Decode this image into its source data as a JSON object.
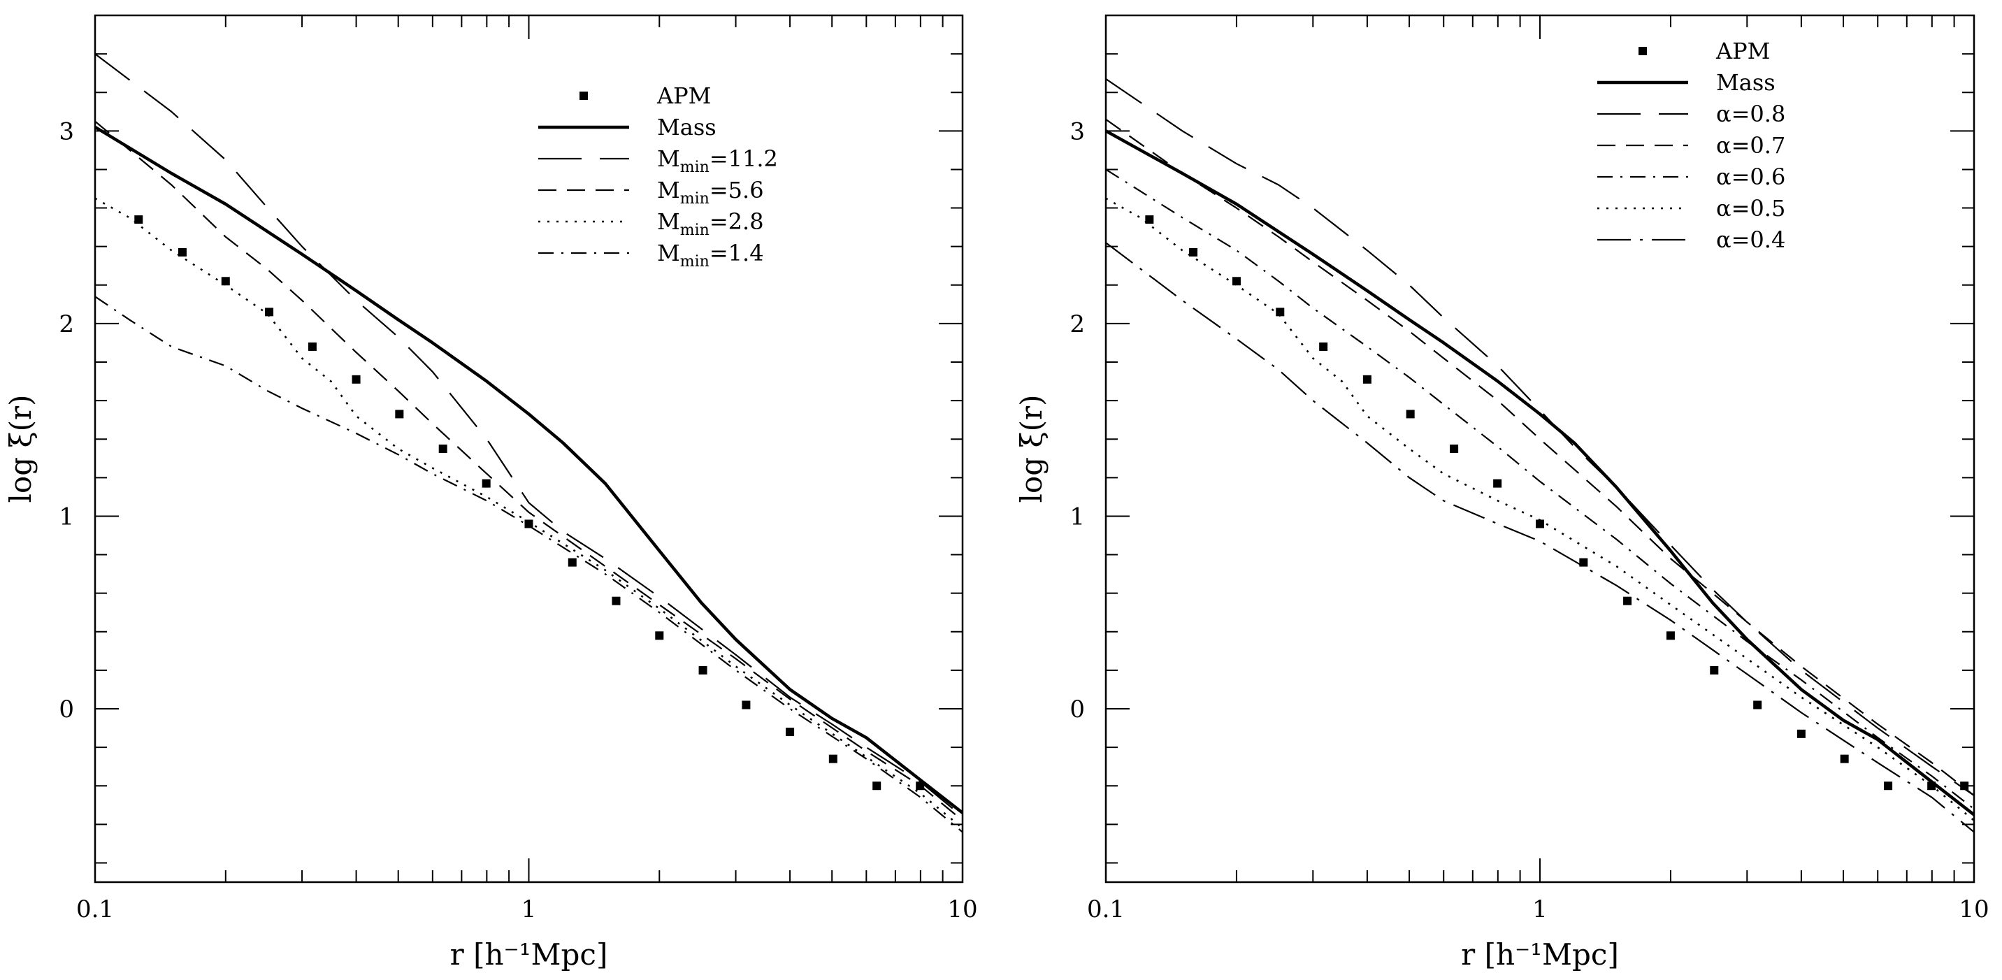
{
  "chart_data": [
    {
      "type": "line",
      "xscale": "log",
      "xlim": [
        0.1,
        10
      ],
      "ylim": [
        -0.9,
        3.6
      ],
      "xlabel": "r [h⁻¹Mpc]",
      "ylabel": "log ξ(r)",
      "x_ticks": [
        0.1,
        1,
        10
      ],
      "x_tick_labels": [
        "0.1",
        "1",
        "10"
      ],
      "y_ticks": [
        0,
        1,
        2,
        3
      ],
      "y_tick_labels": [
        "0",
        "1",
        "2",
        "3"
      ],
      "legend_position": "top-right",
      "series": [
        {
          "name": "APM",
          "style": "points",
          "x": [
            0.126,
            0.159,
            0.2,
            0.252,
            0.317,
            0.4,
            0.503,
            0.634,
            0.798,
            1.0,
            1.26,
            1.59,
            2.0,
            2.52,
            3.17,
            4.0,
            5.03,
            6.34,
            7.98
          ],
          "y": [
            2.54,
            2.37,
            2.22,
            2.06,
            1.88,
            1.71,
            1.53,
            1.35,
            1.17,
            0.96,
            0.76,
            0.56,
            0.38,
            0.2,
            0.02,
            -0.12,
            -0.26,
            -0.4,
            -0.4
          ]
        },
        {
          "name": "Mass",
          "style": "solid-thick",
          "x": [
            0.1,
            0.15,
            0.2,
            0.3,
            0.4,
            0.5,
            0.6,
            0.8,
            1.0,
            1.2,
            1.5,
            2.0,
            2.5,
            3.0,
            4.0,
            5.0,
            6.0,
            8.0,
            10.0
          ],
          "y": [
            3.02,
            2.78,
            2.62,
            2.36,
            2.17,
            2.02,
            1.9,
            1.7,
            1.53,
            1.38,
            1.17,
            0.82,
            0.55,
            0.36,
            0.1,
            -0.05,
            -0.15,
            -0.37,
            -0.54
          ]
        },
        {
          "name": "M_min=11.2",
          "label": "M",
          "sub": "min",
          "suffix": "=11.2",
          "style": "long-dash",
          "x": [
            0.1,
            0.15,
            0.2,
            0.25,
            0.3,
            0.4,
            0.5,
            0.6,
            0.8,
            1.0,
            1.2,
            1.5,
            2.0,
            3.0,
            4.0,
            5.0,
            6.0,
            8.0,
            10.0
          ],
          "y": [
            3.4,
            3.1,
            2.85,
            2.6,
            2.4,
            2.12,
            1.93,
            1.75,
            1.4,
            1.07,
            0.92,
            0.78,
            0.58,
            0.28,
            0.06,
            -0.08,
            -0.2,
            -0.38,
            -0.56
          ]
        },
        {
          "name": "M_min=5.6",
          "label": "M",
          "sub": "min",
          "suffix": "=5.6",
          "style": "short-dash",
          "x": [
            0.1,
            0.15,
            0.2,
            0.25,
            0.3,
            0.4,
            0.5,
            0.6,
            0.8,
            1.0,
            1.5,
            2.0,
            3.0,
            4.0,
            6.0,
            8.0,
            10.0
          ],
          "y": [
            3.05,
            2.72,
            2.45,
            2.28,
            2.12,
            1.85,
            1.65,
            1.48,
            1.22,
            1.02,
            0.74,
            0.54,
            0.26,
            0.05,
            -0.22,
            -0.4,
            -0.58
          ]
        },
        {
          "name": "M_min=2.8",
          "label": "M",
          "sub": "min",
          "suffix": "=2.8",
          "style": "dotted",
          "x": [
            0.1,
            0.12,
            0.15,
            0.2,
            0.25,
            0.3,
            0.35,
            0.4,
            0.5,
            0.6,
            0.8,
            1.0,
            1.5,
            2.0,
            3.0,
            4.0,
            6.0,
            8.0,
            10.0
          ],
          "y": [
            2.65,
            2.55,
            2.38,
            2.2,
            2.05,
            1.82,
            1.7,
            1.52,
            1.35,
            1.25,
            1.1,
            0.97,
            0.72,
            0.52,
            0.22,
            0.02,
            -0.25,
            -0.44,
            -0.62
          ]
        },
        {
          "name": "M_min=1.4",
          "label": "M",
          "sub": "min",
          "suffix": "=1.4",
          "style": "dash-dot",
          "x": [
            0.1,
            0.12,
            0.15,
            0.2,
            0.25,
            0.3,
            0.4,
            0.5,
            0.6,
            0.8,
            1.0,
            1.5,
            2.0,
            3.0,
            4.0,
            6.0,
            8.0,
            10.0
          ],
          "y": [
            2.14,
            2.02,
            1.88,
            1.78,
            1.65,
            1.56,
            1.43,
            1.32,
            1.22,
            1.08,
            0.95,
            0.7,
            0.5,
            0.2,
            0.0,
            -0.26,
            -0.46,
            -0.64
          ]
        }
      ]
    },
    {
      "type": "line",
      "xscale": "log",
      "xlim": [
        0.1,
        10
      ],
      "ylim": [
        -0.9,
        3.6
      ],
      "xlabel": "r [h⁻¹Mpc]",
      "ylabel": "log ξ(r)",
      "x_ticks": [
        0.1,
        1,
        10
      ],
      "x_tick_labels": [
        "0.1",
        "1",
        "10"
      ],
      "y_ticks": [
        0,
        1,
        2,
        3
      ],
      "y_tick_labels": [
        "0",
        "1",
        "2",
        "3"
      ],
      "legend_position": "top-right",
      "series": [
        {
          "name": "APM",
          "style": "points",
          "x": [
            0.126,
            0.159,
            0.2,
            0.252,
            0.317,
            0.4,
            0.503,
            0.634,
            0.798,
            1.0,
            1.26,
            1.59,
            2.0,
            2.52,
            3.17,
            4.0,
            5.03,
            6.34,
            7.98,
            9.5
          ],
          "y": [
            2.54,
            2.37,
            2.22,
            2.06,
            1.88,
            1.71,
            1.53,
            1.35,
            1.17,
            0.96,
            0.76,
            0.56,
            0.38,
            0.2,
            0.02,
            -0.13,
            -0.26,
            -0.4,
            -0.4,
            -0.4
          ]
        },
        {
          "name": "Mass",
          "style": "solid-thick",
          "x": [
            0.1,
            0.15,
            0.2,
            0.3,
            0.4,
            0.5,
            0.6,
            0.8,
            1.0,
            1.2,
            1.5,
            2.0,
            2.5,
            3.0,
            4.0,
            5.0,
            6.0,
            8.0,
            10.0
          ],
          "y": [
            3.0,
            2.78,
            2.62,
            2.36,
            2.17,
            2.02,
            1.9,
            1.7,
            1.53,
            1.38,
            1.15,
            0.82,
            0.55,
            0.36,
            0.1,
            -0.06,
            -0.16,
            -0.38,
            -0.55
          ]
        },
        {
          "name": "α=0.8",
          "style": "long-dash",
          "x": [
            0.1,
            0.15,
            0.2,
            0.25,
            0.3,
            0.4,
            0.5,
            0.6,
            0.8,
            1.0,
            1.2,
            1.5,
            2.0,
            2.5,
            3.0,
            4.0,
            6.0,
            8.0,
            10.0
          ],
          "y": [
            3.27,
            3.0,
            2.83,
            2.72,
            2.6,
            2.38,
            2.2,
            2.03,
            1.78,
            1.55,
            1.36,
            1.15,
            0.85,
            0.62,
            0.45,
            0.2,
            -0.1,
            -0.3,
            -0.45
          ]
        },
        {
          "name": "α=0.7",
          "style": "short-dash",
          "x": [
            0.1,
            0.15,
            0.2,
            0.25,
            0.3,
            0.4,
            0.5,
            0.6,
            0.8,
            1.0,
            1.5,
            2.0,
            2.5,
            3.0,
            4.0,
            6.0,
            8.0,
            10.0
          ],
          "y": [
            3.06,
            2.78,
            2.6,
            2.45,
            2.32,
            2.12,
            1.96,
            1.82,
            1.6,
            1.4,
            1.05,
            0.78,
            0.6,
            0.45,
            0.22,
            -0.08,
            -0.28,
            -0.45
          ]
        },
        {
          "name": "α=0.6",
          "style": "dash-dot",
          "x": [
            0.1,
            0.15,
            0.2,
            0.25,
            0.3,
            0.4,
            0.5,
            0.6,
            0.8,
            1.0,
            1.5,
            2.0,
            3.0,
            4.0,
            6.0,
            8.0,
            10.0
          ],
          "y": [
            2.8,
            2.55,
            2.38,
            2.22,
            2.08,
            1.88,
            1.72,
            1.58,
            1.36,
            1.18,
            0.88,
            0.65,
            0.35,
            0.15,
            -0.15,
            -0.35,
            -0.52
          ]
        },
        {
          "name": "α=0.5",
          "style": "dotted",
          "x": [
            0.1,
            0.12,
            0.15,
            0.2,
            0.25,
            0.3,
            0.35,
            0.4,
            0.5,
            0.6,
            0.8,
            1.0,
            1.5,
            2.0,
            3.0,
            4.0,
            6.0,
            8.0,
            10.0
          ],
          "y": [
            2.65,
            2.55,
            2.38,
            2.2,
            2.05,
            1.82,
            1.7,
            1.52,
            1.35,
            1.22,
            1.08,
            0.98,
            0.74,
            0.54,
            0.26,
            0.06,
            -0.2,
            -0.4,
            -0.58
          ]
        },
        {
          "name": "α=0.4",
          "style": "long-dash-dot",
          "x": [
            0.1,
            0.15,
            0.2,
            0.25,
            0.3,
            0.4,
            0.5,
            0.6,
            0.8,
            1.0,
            1.5,
            2.0,
            3.0,
            4.0,
            6.0,
            8.0,
            10.0
          ],
          "y": [
            2.42,
            2.12,
            1.92,
            1.76,
            1.6,
            1.38,
            1.2,
            1.08,
            0.96,
            0.87,
            0.64,
            0.46,
            0.18,
            -0.02,
            -0.28,
            -0.46,
            -0.64
          ]
        }
      ]
    }
  ]
}
